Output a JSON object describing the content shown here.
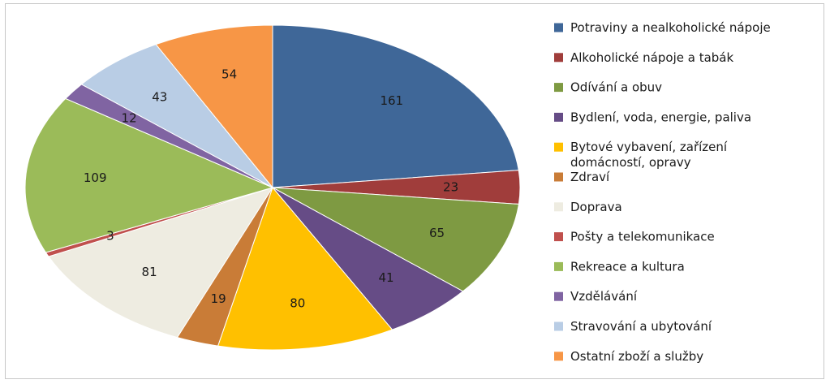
{
  "chart_data": {
    "type": "pie",
    "legend_position": "right",
    "slices": [
      {
        "label": "Potraviny a nealkoholické nápoje",
        "value": 161,
        "color": "#3F6798"
      },
      {
        "label": "Alkoholické nápoje a tabák",
        "value": 23,
        "color": "#A03D3B"
      },
      {
        "label": "Odívání a obuv",
        "value": 65,
        "color": "#7E9A42"
      },
      {
        "label": "Bydlení, voda, energie,  paliva",
        "value": 41,
        "color": "#664C86"
      },
      {
        "label": "Bytové vybavení, zařízení domácností, opravy",
        "value": 80,
        "color": "#FFC000"
      },
      {
        "label": "Zdraví",
        "value": 19,
        "color": "#C97C37"
      },
      {
        "label": "Doprava",
        "value": 81,
        "color": "#EEECE1"
      },
      {
        "label": "Pošty a telekomunikace",
        "value": 3,
        "color": "#C0504D"
      },
      {
        "label": "Rekreace a kultura",
        "value": 109,
        "color": "#9BBB59"
      },
      {
        "label": "Vzdělávání",
        "value": 12,
        "color": "#8064A2"
      },
      {
        "label": "Stravování a ubytování",
        "value": 43,
        "color": "#B9CDE5"
      },
      {
        "label": "Ostatní zboží a služby",
        "value": 54,
        "color": "#F79646"
      }
    ]
  }
}
